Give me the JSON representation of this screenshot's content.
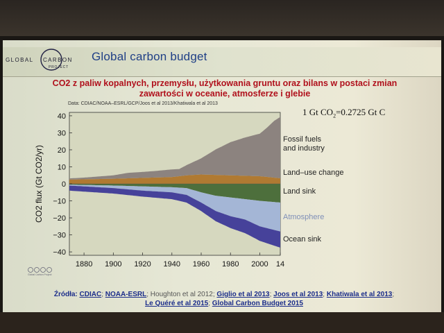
{
  "slide": {
    "logo": {
      "line1": "GLOBAL",
      "line2": "CARBON",
      "line3": "PROJECT"
    },
    "title": "Global carbon budget",
    "subtitle_line1": "CO2 z paliw kopalnych, przemysłu, użytkowania gruntu oraz bilans w postaci zmian",
    "subtitle_line2": "zawartości w oceanie, atmosferze i glebie",
    "data_credit": "Data: CDIAC/NOAA–ESRL/GCP/Joos et al 2013/Khatiwala et al 2013",
    "conversion": {
      "lhs": "1 Gt CO",
      "sub": "2",
      "rhs": "=0.2725 Gt C"
    },
    "license_text": "Global Carbon Project",
    "sources": {
      "label": "Źródła:",
      "items": [
        {
          "text": "CDIAC",
          "link": true
        },
        {
          "text": "NOAA-ESRL",
          "link": true
        },
        {
          "text": "Houghton et al 2012",
          "link": false
        },
        {
          "text": "Giglio et al 2013",
          "link": true
        },
        {
          "text": "Joos et al 2013",
          "link": true
        },
        {
          "text": "Khatiwala et al 2013",
          "link": true
        },
        {
          "text": "Le Quéré et al 2015",
          "link": true
        },
        {
          "text": "Global Carbon Budget 2015",
          "link": true
        }
      ]
    }
  },
  "chart_data": {
    "type": "area",
    "ylabel": "CO2 flux (Gt CO2/yr)",
    "xlim": [
      1870,
      2014
    ],
    "ylim": [
      -42,
      42
    ],
    "x_ticks": [
      "1880",
      "1900",
      "1920",
      "1940",
      "1960",
      "1980",
      "2000",
      "14"
    ],
    "y_ticks": [
      "40",
      "30",
      "20",
      "10",
      "0",
      "−10",
      "−20",
      "−30",
      "−40"
    ],
    "sources_series": [
      {
        "name": "Land–use change",
        "color": "#b07a32",
        "x": [
          1870,
          1900,
          1920,
          1940,
          1950,
          1960,
          1980,
          2000,
          2014
        ],
        "values": [
          2.5,
          3.0,
          3.5,
          4.0,
          5.0,
          5.5,
          5.0,
          4.5,
          3.3
        ]
      },
      {
        "name": "Fossil fuels and industry",
        "color": "#8c837f",
        "x": [
          1870,
          1880,
          1900,
          1910,
          1920,
          1930,
          1940,
          1945,
          1950,
          1960,
          1970,
          1980,
          1990,
          2000,
          2005,
          2010,
          2014
        ],
        "values": [
          0.7,
          1.0,
          2.0,
          3.2,
          3.5,
          3.9,
          4.5,
          4.2,
          6.0,
          9.5,
          15.0,
          19.5,
          22.5,
          25.0,
          29.0,
          33.5,
          36.0
        ]
      }
    ],
    "sinks_series": [
      {
        "name": "Land sink",
        "color": "#4d6f3c",
        "x": [
          1870,
          1900,
          1920,
          1940,
          1950,
          1960,
          1970,
          1980,
          1990,
          2000,
          2014
        ],
        "values": [
          -0.5,
          -1.0,
          -1.5,
          -2.0,
          -2.5,
          -5,
          -7,
          -8,
          -9,
          -10,
          -11
        ]
      },
      {
        "name": "Atmosphere",
        "color": "#a4b6d6",
        "x": [
          1870,
          1900,
          1920,
          1940,
          1950,
          1960,
          1970,
          1980,
          1990,
          2000,
          2014
        ],
        "values": [
          -0.5,
          -1.5,
          -2.5,
          -3.0,
          -4.0,
          -6,
          -9,
          -11,
          -12,
          -15,
          -17
        ]
      },
      {
        "name": "Ocean sink",
        "color": "#46429a",
        "x": [
          1870,
          1900,
          1920,
          1940,
          1950,
          1960,
          1970,
          1980,
          1990,
          2000,
          2014
        ],
        "values": [
          -3.0,
          -3.2,
          -3.5,
          -4.0,
          -4.5,
          -5.0,
          -6.0,
          -7.0,
          -8.0,
          -8.5,
          -9.5
        ]
      }
    ],
    "labels": {
      "fossil": "Fossil fuels\nand industry",
      "luc": "Land–use change",
      "land_sink": "Land sink",
      "atmosphere": "Atmosphere",
      "ocean": "Ocean sink"
    },
    "label_colors": {
      "fossil": "#222222",
      "luc": "#222222",
      "land_sink": "#222222",
      "atmosphere": "#7f8fb8",
      "ocean": "#222222"
    },
    "plot_background": "#d6d8bf",
    "grid": false
  }
}
